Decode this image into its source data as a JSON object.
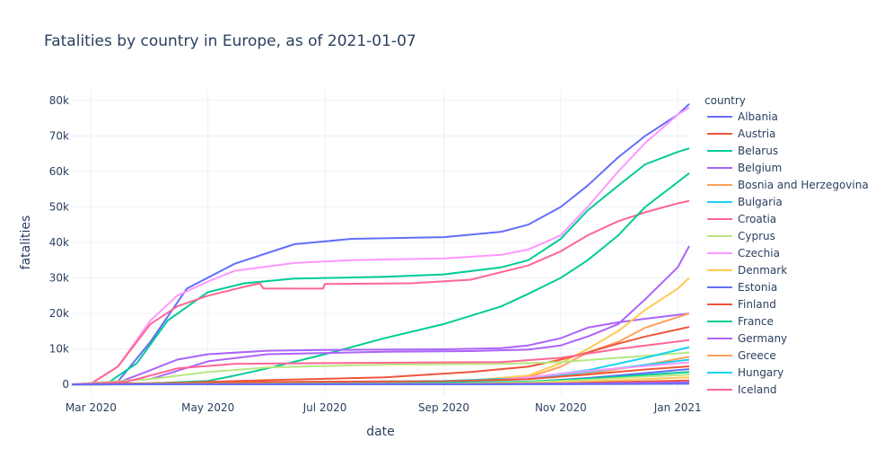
{
  "chart_data": {
    "type": "line",
    "title": "Fatalities by country in Europe, as of 2021-01-07",
    "xlabel": "date",
    "ylabel": "fatalities",
    "x_ticks": [
      "Mar 2020",
      "May 2020",
      "Jul 2020",
      "Sep 2020",
      "Nov 2020",
      "Jan 2021"
    ],
    "y_ticks": [
      "0",
      "10k",
      "20k",
      "30k",
      "40k",
      "50k",
      "60k",
      "70k",
      "80k"
    ],
    "x_range": [
      "2020-02-20",
      "2021-01-07"
    ],
    "ylim": [
      -3000,
      83000
    ],
    "grid": true,
    "legend_title": "country",
    "legend_placement": "right",
    "series": [
      {
        "name": "Albania",
        "color": "#636efa"
      },
      {
        "name": "Austria",
        "color": "#EF553B"
      },
      {
        "name": "Belarus",
        "color": "#00cc96"
      },
      {
        "name": "Belgium",
        "color": "#ab63fa"
      },
      {
        "name": "Bosnia and Herzegovina",
        "color": "#FFA15A"
      },
      {
        "name": "Bulgaria",
        "color": "#19d3f3"
      },
      {
        "name": "Croatia",
        "color": "#FF6692"
      },
      {
        "name": "Cyprus",
        "color": "#B6E880"
      },
      {
        "name": "Czechia",
        "color": "#FF97FF"
      },
      {
        "name": "Denmark",
        "color": "#FECB52"
      },
      {
        "name": "Estonia",
        "color": "#636efa"
      },
      {
        "name": "Finland",
        "color": "#EF553B"
      },
      {
        "name": "France",
        "color": "#00cc96"
      },
      {
        "name": "Germany",
        "color": "#ab63fa"
      },
      {
        "name": "Greece",
        "color": "#FFA15A"
      },
      {
        "name": "Hungary",
        "color": "#19d3f3"
      },
      {
        "name": "Iceland",
        "color": "#FF6692"
      }
    ],
    "lines": [
      {
        "color": "#636efa",
        "points": [
          [
            "2020-02-20",
            0
          ],
          [
            "2020-03-15",
            800
          ],
          [
            "2020-04-01",
            12000
          ],
          [
            "2020-04-20",
            27000
          ],
          [
            "2020-05-15",
            34000
          ],
          [
            "2020-06-15",
            39500
          ],
          [
            "2020-07-15",
            41000
          ],
          [
            "2020-09-01",
            41500
          ],
          [
            "2020-10-01",
            43000
          ],
          [
            "2020-10-15",
            45000
          ],
          [
            "2020-11-01",
            50000
          ],
          [
            "2020-11-15",
            56000
          ],
          [
            "2020-12-01",
            64000
          ],
          [
            "2020-12-15",
            70000
          ],
          [
            "2021-01-01",
            76000
          ],
          [
            "2021-01-07",
            79000
          ]
        ]
      },
      {
        "color": "#FF97FF",
        "points": [
          [
            "2020-02-20",
            0
          ],
          [
            "2020-03-01",
            300
          ],
          [
            "2020-03-15",
            5000
          ],
          [
            "2020-04-01",
            18000
          ],
          [
            "2020-04-15",
            25000
          ],
          [
            "2020-05-01",
            29000
          ],
          [
            "2020-05-15",
            32000
          ],
          [
            "2020-06-15",
            34200
          ],
          [
            "2020-07-15",
            35000
          ],
          [
            "2020-09-01",
            35500
          ],
          [
            "2020-10-01",
            36500
          ],
          [
            "2020-10-15",
            38000
          ],
          [
            "2020-11-01",
            42000
          ],
          [
            "2020-11-15",
            50000
          ],
          [
            "2020-12-01",
            60000
          ],
          [
            "2020-12-15",
            68000
          ],
          [
            "2021-01-01",
            76000
          ],
          [
            "2021-01-07",
            78000
          ]
        ]
      },
      {
        "color": "#00cc96",
        "points": [
          [
            "2020-02-20",
            0
          ],
          [
            "2020-03-10",
            500
          ],
          [
            "2020-03-25",
            6000
          ],
          [
            "2020-04-10",
            18000
          ],
          [
            "2020-05-01",
            26000
          ],
          [
            "2020-05-20",
            28500
          ],
          [
            "2020-06-15",
            29800
          ],
          [
            "2020-08-01",
            30300
          ],
          [
            "2020-09-01",
            31000
          ],
          [
            "2020-10-01",
            33000
          ],
          [
            "2020-10-15",
            35000
          ],
          [
            "2020-11-01",
            41000
          ],
          [
            "2020-11-15",
            49000
          ],
          [
            "2020-12-01",
            56000
          ],
          [
            "2020-12-15",
            62000
          ],
          [
            "2021-01-01",
            65500
          ],
          [
            "2021-01-07",
            66500
          ]
        ]
      },
      {
        "color": "#FF6692",
        "points": [
          [
            "2020-02-20",
            0
          ],
          [
            "2020-03-01",
            200
          ],
          [
            "2020-03-15",
            5000
          ],
          [
            "2020-04-01",
            17000
          ],
          [
            "2020-04-15",
            22000
          ],
          [
            "2020-05-01",
            25000
          ],
          [
            "2020-05-20",
            27500
          ],
          [
            "2020-05-28",
            28500
          ],
          [
            "2020-05-30",
            27000
          ],
          [
            "2020-06-30",
            27000
          ],
          [
            "2020-07-01",
            28300
          ],
          [
            "2020-08-15",
            28500
          ],
          [
            "2020-09-15",
            29500
          ],
          [
            "2020-10-15",
            33500
          ],
          [
            "2020-11-01",
            37500
          ],
          [
            "2020-11-15",
            42000
          ],
          [
            "2020-12-01",
            46000
          ],
          [
            "2020-12-15",
            48500
          ],
          [
            "2021-01-01",
            51000
          ],
          [
            "2021-01-07",
            51700
          ]
        ]
      },
      {
        "color": "#00cc96",
        "points": [
          [
            "2020-02-20",
            0
          ],
          [
            "2020-04-01",
            300
          ],
          [
            "2020-05-01",
            1000
          ],
          [
            "2020-05-15",
            2500
          ],
          [
            "2020-06-01",
            4500
          ],
          [
            "2020-07-01",
            8500
          ],
          [
            "2020-08-01",
            13000
          ],
          [
            "2020-09-01",
            17000
          ],
          [
            "2020-10-01",
            22000
          ],
          [
            "2020-10-15",
            25500
          ],
          [
            "2020-11-01",
            30000
          ],
          [
            "2020-11-15",
            35000
          ],
          [
            "2020-12-01",
            42000
          ],
          [
            "2020-12-15",
            50000
          ],
          [
            "2021-01-01",
            57000
          ],
          [
            "2021-01-07",
            59500
          ]
        ]
      },
      {
        "color": "#ab63fa",
        "points": [
          [
            "2020-02-20",
            0
          ],
          [
            "2020-03-15",
            500
          ],
          [
            "2020-04-01",
            4000
          ],
          [
            "2020-04-15",
            7000
          ],
          [
            "2020-05-01",
            8500
          ],
          [
            "2020-06-01",
            9500
          ],
          [
            "2020-07-01",
            9700
          ],
          [
            "2020-09-01",
            9900
          ],
          [
            "2020-10-01",
            10200
          ],
          [
            "2020-10-15",
            11000
          ],
          [
            "2020-11-01",
            13000
          ],
          [
            "2020-11-15",
            16000
          ],
          [
            "2020-12-01",
            17500
          ],
          [
            "2020-12-15",
            18500
          ],
          [
            "2021-01-07",
            20000
          ]
        ]
      },
      {
        "color": "#ab63fa",
        "points": [
          [
            "2020-02-20",
            0
          ],
          [
            "2020-04-01",
            1500
          ],
          [
            "2020-05-01",
            6500
          ],
          [
            "2020-06-01",
            8500
          ],
          [
            "2020-08-01",
            9200
          ],
          [
            "2020-09-15",
            9400
          ],
          [
            "2020-10-15",
            9800
          ],
          [
            "2020-11-01",
            11000
          ],
          [
            "2020-11-15",
            13500
          ],
          [
            "2020-12-01",
            17000
          ],
          [
            "2020-12-15",
            24000
          ],
          [
            "2021-01-01",
            33000
          ],
          [
            "2021-01-07",
            39000
          ]
        ]
      },
      {
        "color": "#FECB52",
        "points": [
          [
            "2020-02-20",
            0
          ],
          [
            "2020-09-01",
            500
          ],
          [
            "2020-10-15",
            2500
          ],
          [
            "2020-11-01",
            6000
          ],
          [
            "2020-11-15",
            10000
          ],
          [
            "2020-12-01",
            15000
          ],
          [
            "2020-12-15",
            21000
          ],
          [
            "2021-01-01",
            27000
          ],
          [
            "2021-01-07",
            30000
          ]
        ]
      },
      {
        "color": "#FFA15A",
        "points": [
          [
            "2020-02-20",
            0
          ],
          [
            "2020-09-01",
            300
          ],
          [
            "2020-10-15",
            2000
          ],
          [
            "2020-11-01",
            5000
          ],
          [
            "2020-11-15",
            9000
          ],
          [
            "2020-12-01",
            12000
          ],
          [
            "2020-12-15",
            16000
          ],
          [
            "2021-01-07",
            20000
          ]
        ]
      },
      {
        "color": "#EF553B",
        "points": [
          [
            "2020-02-20",
            0
          ],
          [
            "2020-04-15",
            500
          ],
          [
            "2020-06-01",
            1200
          ],
          [
            "2020-08-01",
            2000
          ],
          [
            "2020-09-15",
            3500
          ],
          [
            "2020-10-15",
            5000
          ],
          [
            "2020-11-01",
            7000
          ],
          [
            "2020-11-15",
            9000
          ],
          [
            "2020-12-01",
            11500
          ],
          [
            "2020-12-15",
            13500
          ],
          [
            "2021-01-07",
            16200
          ]
        ]
      },
      {
        "color": "#B6E880",
        "points": [
          [
            "2020-02-20",
            0
          ],
          [
            "2020-04-01",
            1500
          ],
          [
            "2020-05-01",
            3500
          ],
          [
            "2020-06-01",
            4800
          ],
          [
            "2020-08-01",
            5600
          ],
          [
            "2020-10-01",
            5800
          ],
          [
            "2020-11-01",
            6300
          ],
          [
            "2020-12-01",
            7500
          ],
          [
            "2021-01-07",
            9000
          ]
        ]
      },
      {
        "color": "#FF6692",
        "points": [
          [
            "2020-02-20",
            0
          ],
          [
            "2020-03-20",
            800
          ],
          [
            "2020-04-15",
            4500
          ],
          [
            "2020-05-15",
            5800
          ],
          [
            "2020-07-01",
            6000
          ],
          [
            "2020-10-01",
            6300
          ],
          [
            "2020-11-01",
            7500
          ],
          [
            "2020-12-01",
            10000
          ],
          [
            "2021-01-07",
            12500
          ]
        ]
      },
      {
        "color": "#19d3f3",
        "points": [
          [
            "2020-02-20",
            0
          ],
          [
            "2020-06-01",
            600
          ],
          [
            "2020-09-01",
            1000
          ],
          [
            "2020-10-15",
            1800
          ],
          [
            "2020-11-15",
            4000
          ],
          [
            "2020-12-15",
            7500
          ],
          [
            "2021-01-07",
            10500
          ]
        ]
      },
      {
        "color": "#FFA15A",
        "points": [
          [
            "2020-02-20",
            0
          ],
          [
            "2020-06-01",
            300
          ],
          [
            "2020-09-01",
            700
          ],
          [
            "2020-10-15",
            1500
          ],
          [
            "2020-11-15",
            3000
          ],
          [
            "2020-12-15",
            5500
          ],
          [
            "2021-01-07",
            7800
          ]
        ]
      },
      {
        "color": "#19d3f3",
        "points": [
          [
            "2020-02-20",
            0
          ],
          [
            "2020-07-01",
            300
          ],
          [
            "2020-09-15",
            800
          ],
          [
            "2020-10-15",
            1800
          ],
          [
            "2020-11-15",
            3500
          ],
          [
            "2020-12-15",
            5500
          ],
          [
            "2021-01-07",
            7000
          ]
        ]
      },
      {
        "color": "#FF97FF",
        "points": [
          [
            "2020-02-20",
            0
          ],
          [
            "2020-07-01",
            200
          ],
          [
            "2020-09-15",
            600
          ],
          [
            "2020-10-15",
            2000
          ],
          [
            "2020-11-15",
            3800
          ],
          [
            "2020-12-15",
            5200
          ],
          [
            "2021-01-07",
            6200
          ]
        ]
      },
      {
        "color": "#EF553B",
        "points": [
          [
            "2020-02-20",
            0
          ],
          [
            "2020-04-15",
            300
          ],
          [
            "2020-06-01",
            700
          ],
          [
            "2020-09-01",
            900
          ],
          [
            "2020-10-15",
            1500
          ],
          [
            "2020-11-15",
            2800
          ],
          [
            "2020-12-15",
            4200
          ],
          [
            "2021-01-07",
            5100
          ]
        ]
      },
      {
        "color": "#636efa",
        "points": [
          [
            "2020-02-20",
            0
          ],
          [
            "2020-08-01",
            200
          ],
          [
            "2020-10-15",
            700
          ],
          [
            "2020-11-15",
            1800
          ],
          [
            "2020-12-15",
            3200
          ],
          [
            "2021-01-07",
            4300
          ]
        ]
      },
      {
        "color": "#00cc96",
        "points": [
          [
            "2020-02-20",
            0
          ],
          [
            "2020-08-01",
            300
          ],
          [
            "2020-10-15",
            800
          ],
          [
            "2020-11-15",
            1600
          ],
          [
            "2020-12-15",
            2700
          ],
          [
            "2021-01-07",
            3500
          ]
        ]
      },
      {
        "color": "#B6E880",
        "points": [
          [
            "2020-02-20",
            0
          ],
          [
            "2020-09-01",
            200
          ],
          [
            "2020-10-15",
            600
          ],
          [
            "2020-11-15",
            1300
          ],
          [
            "2020-12-15",
            2200
          ],
          [
            "2021-01-07",
            2800
          ]
        ]
      },
      {
        "color": "#FECB52",
        "points": [
          [
            "2020-02-20",
            0
          ],
          [
            "2020-09-01",
            100
          ],
          [
            "2020-10-15",
            300
          ],
          [
            "2020-11-15",
            800
          ],
          [
            "2020-12-15",
            1500
          ],
          [
            "2021-01-07",
            2000
          ]
        ]
      },
      {
        "color": "#EF553B",
        "points": [
          [
            "2020-02-20",
            0
          ],
          [
            "2020-09-01",
            100
          ],
          [
            "2020-11-01",
            300
          ],
          [
            "2020-12-01",
            700
          ],
          [
            "2021-01-07",
            1100
          ]
        ]
      },
      {
        "color": "#ab63fa",
        "points": [
          [
            "2020-02-20",
            0
          ],
          [
            "2020-10-01",
            100
          ],
          [
            "2020-11-15",
            300
          ],
          [
            "2021-01-07",
            600
          ]
        ]
      },
      {
        "color": "#636efa",
        "points": [
          [
            "2020-02-20",
            0
          ],
          [
            "2020-11-01",
            50
          ],
          [
            "2021-01-07",
            200
          ]
        ]
      }
    ]
  }
}
